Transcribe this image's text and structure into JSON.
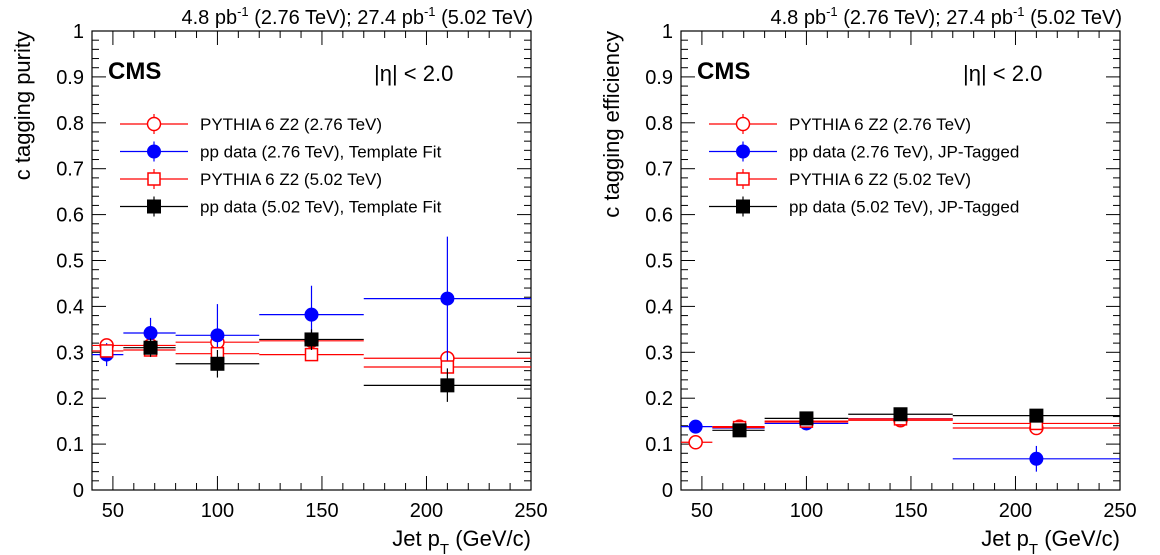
{
  "chart_data": [
    {
      "type": "scatter",
      "top_label": "4.8 pb^-1 (2.76 TeV); 27.4 pb^-1 (5.02 TeV)",
      "experiment": "CMS",
      "eta_label": "|η| < 2.0",
      "xlabel": "Jet p_T (GeV/c)",
      "ylabel": "c tagging purity",
      "xlim": [
        40,
        250
      ],
      "ylim": [
        0,
        1
      ],
      "xticks": [
        50,
        100,
        150,
        200,
        250
      ],
      "yticks": [
        0,
        0.1,
        0.2,
        0.3,
        0.4,
        0.5,
        0.6,
        0.7,
        0.8,
        0.9,
        1
      ],
      "ytick_labels": [
        "0",
        "0.1",
        "0.2",
        "0.3",
        "0.4",
        "0.5",
        "0.6",
        "0.7",
        "0.8",
        "0.9",
        "1"
      ],
      "xtick_labels": [
        "50",
        "100",
        "150",
        "200",
        "250"
      ],
      "legend_position": "top-left",
      "series": [
        {
          "name": "PYTHIA 6 Z2 (2.76 TeV)",
          "marker": "open-circle",
          "color": "#ff0000",
          "points": [
            {
              "x": 47,
              "y": 0.315,
              "xlo": 40,
              "xhi": 55,
              "ylo": 0.315,
              "yhi": 0.315
            },
            {
              "x": 68,
              "y": 0.315,
              "xlo": 55,
              "xhi": 80,
              "ylo": 0.315,
              "yhi": 0.315
            },
            {
              "x": 100,
              "y": 0.322,
              "xlo": 80,
              "xhi": 120,
              "ylo": 0.322,
              "yhi": 0.322
            },
            {
              "x": 145,
              "y": 0.325,
              "xlo": 120,
              "xhi": 170,
              "ylo": 0.325,
              "yhi": 0.325
            },
            {
              "x": 210,
              "y": 0.287,
              "xlo": 170,
              "xhi": 250,
              "ylo": 0.287,
              "yhi": 0.287
            }
          ]
        },
        {
          "name": "pp data (2.76 TeV), Template Fit",
          "marker": "filled-circle",
          "color": "#0000ff",
          "points": [
            {
              "x": 47,
              "y": 0.295,
              "xlo": 40,
              "xhi": 55,
              "ylo": 0.27,
              "yhi": 0.32
            },
            {
              "x": 68,
              "y": 0.342,
              "xlo": 55,
              "xhi": 80,
              "ylo": 0.31,
              "yhi": 0.375
            },
            {
              "x": 100,
              "y": 0.337,
              "xlo": 80,
              "xhi": 120,
              "ylo": 0.27,
              "yhi": 0.405
            },
            {
              "x": 145,
              "y": 0.382,
              "xlo": 120,
              "xhi": 170,
              "ylo": 0.32,
              "yhi": 0.445
            },
            {
              "x": 210,
              "y": 0.417,
              "xlo": 170,
              "xhi": 250,
              "ylo": 0.28,
              "yhi": 0.552
            }
          ]
        },
        {
          "name": "PYTHIA 6 Z2 (5.02 TeV)",
          "marker": "open-square",
          "color": "#ff0000",
          "points": [
            {
              "x": 47,
              "y": 0.303,
              "xlo": 40,
              "xhi": 55,
              "ylo": 0.303,
              "yhi": 0.303
            },
            {
              "x": 68,
              "y": 0.305,
              "xlo": 55,
              "xhi": 80,
              "ylo": 0.305,
              "yhi": 0.305
            },
            {
              "x": 100,
              "y": 0.297,
              "xlo": 80,
              "xhi": 120,
              "ylo": 0.297,
              "yhi": 0.297
            },
            {
              "x": 145,
              "y": 0.295,
              "xlo": 120,
              "xhi": 170,
              "ylo": 0.295,
              "yhi": 0.295
            },
            {
              "x": 210,
              "y": 0.268,
              "xlo": 170,
              "xhi": 250,
              "ylo": 0.268,
              "yhi": 0.268
            }
          ]
        },
        {
          "name": "pp data (5.02 TeV), Template Fit",
          "marker": "filled-square",
          "color": "#000000",
          "points": [
            {
              "x": 68,
              "y": 0.31,
              "xlo": 55,
              "xhi": 80,
              "ylo": 0.29,
              "yhi": 0.33
            },
            {
              "x": 100,
              "y": 0.275,
              "xlo": 80,
              "xhi": 120,
              "ylo": 0.245,
              "yhi": 0.305
            },
            {
              "x": 145,
              "y": 0.328,
              "xlo": 120,
              "xhi": 170,
              "ylo": 0.305,
              "yhi": 0.35
            },
            {
              "x": 210,
              "y": 0.228,
              "xlo": 170,
              "xhi": 250,
              "ylo": 0.192,
              "yhi": 0.265
            }
          ]
        }
      ]
    },
    {
      "type": "scatter",
      "top_label": "4.8 pb^-1 (2.76 TeV); 27.4 pb^-1 (5.02 TeV)",
      "experiment": "CMS",
      "eta_label": "|η| < 2.0",
      "xlabel": "Jet p_T (GeV/c)",
      "ylabel": "c tagging efficiency",
      "xlim": [
        40,
        250
      ],
      "ylim": [
        0,
        1
      ],
      "xticks": [
        50,
        100,
        150,
        200,
        250
      ],
      "yticks": [
        0,
        0.1,
        0.2,
        0.3,
        0.4,
        0.5,
        0.6,
        0.7,
        0.8,
        0.9,
        1
      ],
      "ytick_labels": [
        "0",
        "0.1",
        "0.2",
        "0.3",
        "0.4",
        "0.5",
        "0.6",
        "0.7",
        "0.8",
        "0.9",
        "1"
      ],
      "xtick_labels": [
        "50",
        "100",
        "150",
        "200",
        "250"
      ],
      "legend_position": "top-left",
      "series": [
        {
          "name": "PYTHIA 6 Z2 (2.76 TeV)",
          "marker": "open-circle",
          "color": "#ff0000",
          "points": [
            {
              "x": 47,
              "y": 0.104,
              "xlo": 40,
              "xhi": 55,
              "ylo": 0.104,
              "yhi": 0.104
            },
            {
              "x": 68,
              "y": 0.138,
              "xlo": 55,
              "xhi": 80,
              "ylo": 0.138,
              "yhi": 0.138
            },
            {
              "x": 100,
              "y": 0.148,
              "xlo": 80,
              "xhi": 120,
              "ylo": 0.148,
              "yhi": 0.148
            },
            {
              "x": 145,
              "y": 0.152,
              "xlo": 120,
              "xhi": 170,
              "ylo": 0.152,
              "yhi": 0.152
            },
            {
              "x": 210,
              "y": 0.135,
              "xlo": 170,
              "xhi": 250,
              "ylo": 0.135,
              "yhi": 0.135
            }
          ]
        },
        {
          "name": "pp data (2.76 TeV), JP-Tagged",
          "marker": "filled-circle",
          "color": "#0000ff",
          "points": [
            {
              "x": 47,
              "y": 0.138,
              "xlo": 40,
              "xhi": 55,
              "ylo": 0.13,
              "yhi": 0.146
            },
            {
              "x": 68,
              "y": 0.135,
              "xlo": 55,
              "xhi": 80,
              "ylo": 0.127,
              "yhi": 0.143
            },
            {
              "x": 100,
              "y": 0.145,
              "xlo": 80,
              "xhi": 120,
              "ylo": 0.135,
              "yhi": 0.155
            },
            {
              "x": 145,
              "y": 0.155,
              "xlo": 120,
              "xhi": 170,
              "ylo": 0.143,
              "yhi": 0.167
            },
            {
              "x": 210,
              "y": 0.068,
              "xlo": 170,
              "xhi": 250,
              "ylo": 0.04,
              "yhi": 0.096
            }
          ]
        },
        {
          "name": "PYTHIA 6 Z2 (5.02 TeV)",
          "marker": "open-square",
          "color": "#ff0000",
          "points": [
            {
              "x": 68,
              "y": 0.136,
              "xlo": 55,
              "xhi": 80,
              "ylo": 0.136,
              "yhi": 0.136
            },
            {
              "x": 100,
              "y": 0.15,
              "xlo": 80,
              "xhi": 120,
              "ylo": 0.15,
              "yhi": 0.15
            },
            {
              "x": 145,
              "y": 0.155,
              "xlo": 120,
              "xhi": 170,
              "ylo": 0.155,
              "yhi": 0.155
            },
            {
              "x": 210,
              "y": 0.145,
              "xlo": 170,
              "xhi": 250,
              "ylo": 0.145,
              "yhi": 0.145
            }
          ]
        },
        {
          "name": "pp data (5.02 TeV), JP-Tagged",
          "marker": "filled-square",
          "color": "#000000",
          "points": [
            {
              "x": 68,
              "y": 0.13,
              "xlo": 55,
              "xhi": 80,
              "ylo": 0.124,
              "yhi": 0.136
            },
            {
              "x": 100,
              "y": 0.156,
              "xlo": 80,
              "xhi": 120,
              "ylo": 0.15,
              "yhi": 0.162
            },
            {
              "x": 145,
              "y": 0.165,
              "xlo": 120,
              "xhi": 170,
              "ylo": 0.158,
              "yhi": 0.172
            },
            {
              "x": 210,
              "y": 0.162,
              "xlo": 170,
              "xhi": 250,
              "ylo": 0.154,
              "yhi": 0.17
            }
          ]
        }
      ]
    }
  ]
}
